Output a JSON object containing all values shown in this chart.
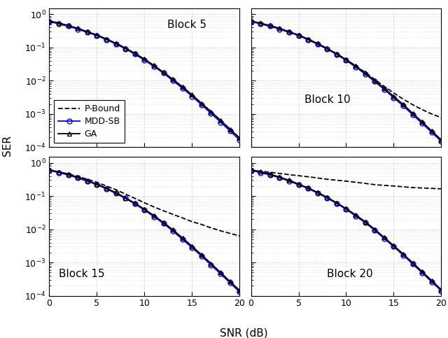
{
  "snr": [
    0,
    1,
    2,
    3,
    4,
    5,
    6,
    7,
    8,
    9,
    10,
    11,
    12,
    13,
    14,
    15,
    16,
    17,
    18,
    19,
    20
  ],
  "block_labels": [
    "Block 5",
    "Block 10",
    "Block 15",
    "Block 20"
  ],
  "legend_labels": [
    "P-Bound",
    "MDD-SB",
    "GA"
  ],
  "xlabel": "SNR (dB)",
  "ylabel": "SER",
  "ylim": [
    0.0001,
    1.5
  ],
  "xlim": [
    0,
    20
  ],
  "pbound": {
    "block5": [
      0.6,
      0.52,
      0.44,
      0.36,
      0.29,
      0.23,
      0.175,
      0.13,
      0.094,
      0.065,
      0.044,
      0.028,
      0.018,
      0.011,
      0.0065,
      0.0037,
      0.0021,
      0.00117,
      0.00064,
      0.00035,
      0.00019
    ],
    "block10": [
      0.6,
      0.52,
      0.44,
      0.36,
      0.29,
      0.23,
      0.175,
      0.13,
      0.094,
      0.065,
      0.044,
      0.028,
      0.018,
      0.011,
      0.0068,
      0.0043,
      0.0028,
      0.0019,
      0.00135,
      0.001,
      0.00078
    ],
    "block15": [
      0.6,
      0.54,
      0.46,
      0.39,
      0.32,
      0.26,
      0.2,
      0.155,
      0.115,
      0.085,
      0.063,
      0.047,
      0.036,
      0.028,
      0.022,
      0.017,
      0.014,
      0.011,
      0.009,
      0.0075,
      0.0063
    ],
    "block20": [
      0.6,
      0.56,
      0.52,
      0.48,
      0.44,
      0.41,
      0.38,
      0.35,
      0.32,
      0.3,
      0.28,
      0.26,
      0.24,
      0.22,
      0.21,
      0.2,
      0.19,
      0.18,
      0.175,
      0.17,
      0.165
    ]
  },
  "mdd_sb": {
    "block5": [
      0.6,
      0.52,
      0.44,
      0.36,
      0.29,
      0.23,
      0.174,
      0.128,
      0.092,
      0.063,
      0.042,
      0.027,
      0.017,
      0.01,
      0.006,
      0.0034,
      0.0019,
      0.00105,
      0.00057,
      0.00031,
      0.000165
    ],
    "block10": [
      0.6,
      0.52,
      0.44,
      0.36,
      0.29,
      0.23,
      0.172,
      0.126,
      0.09,
      0.062,
      0.041,
      0.026,
      0.016,
      0.0095,
      0.0055,
      0.0031,
      0.00175,
      0.00095,
      0.00052,
      0.00028,
      0.00015
    ],
    "block15": [
      0.59,
      0.51,
      0.43,
      0.35,
      0.28,
      0.22,
      0.165,
      0.12,
      0.085,
      0.058,
      0.038,
      0.024,
      0.015,
      0.0088,
      0.005,
      0.0028,
      0.00156,
      0.000845,
      0.000455,
      0.000244,
      0.00013
    ],
    "block20": [
      0.59,
      0.51,
      0.43,
      0.36,
      0.28,
      0.22,
      0.168,
      0.123,
      0.087,
      0.06,
      0.04,
      0.025,
      0.016,
      0.0093,
      0.0053,
      0.003,
      0.00167,
      0.0009,
      0.000486,
      0.000261,
      0.00014
    ]
  },
  "ga": {
    "block5": [
      0.63,
      0.55,
      0.46,
      0.38,
      0.3,
      0.24,
      0.182,
      0.135,
      0.097,
      0.067,
      0.045,
      0.029,
      0.018,
      0.011,
      0.0066,
      0.0038,
      0.0021,
      0.00118,
      0.00064,
      0.00035,
      0.000188
    ],
    "block10": [
      0.63,
      0.54,
      0.46,
      0.38,
      0.3,
      0.24,
      0.18,
      0.132,
      0.094,
      0.065,
      0.043,
      0.028,
      0.017,
      0.01,
      0.006,
      0.0034,
      0.00193,
      0.00105,
      0.000574,
      0.00031,
      0.000167
    ],
    "block15": [
      0.62,
      0.53,
      0.45,
      0.37,
      0.29,
      0.23,
      0.173,
      0.126,
      0.089,
      0.061,
      0.04,
      0.026,
      0.016,
      0.0096,
      0.0055,
      0.0031,
      0.00172,
      0.000933,
      0.000503,
      0.00027,
      0.000145
    ],
    "block20": [
      0.62,
      0.54,
      0.46,
      0.37,
      0.3,
      0.23,
      0.176,
      0.129,
      0.092,
      0.063,
      0.042,
      0.027,
      0.017,
      0.01,
      0.0057,
      0.0032,
      0.00181,
      0.00098,
      0.00053,
      0.000285,
      0.000153
    ]
  },
  "pbound_color": "#000000",
  "mdd_sb_color": "#0000FF",
  "ga_color": "#000000",
  "grid_color": "#B0B0B0",
  "label_fontsize": 11,
  "legend_fontsize": 9,
  "tick_fontsize": 9,
  "annot_fontsize": 11,
  "linewidth": 1.3,
  "markersize": 5
}
